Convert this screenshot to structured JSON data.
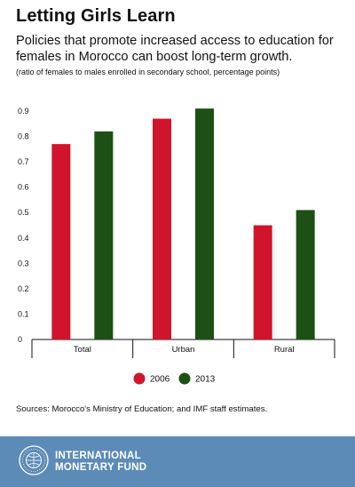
{
  "header": {
    "title": "Letting Girls Learn",
    "subtitle": "Policies that promote increased access to education for females in Morocco can boost long-term growth.",
    "note": "(ratio of females to males enrolled in secondary school, percentage points)"
  },
  "footer": {
    "source": "Sources: Morocco's Ministry of Education; and IMF staff estimates.",
    "org_line1": "INTERNATIONAL",
    "org_line2": "MONETARY FUND",
    "logo": "imf-seal-icon"
  },
  "colors": {
    "s2006": "#d0142c",
    "s2013": "#1d5014",
    "footer": "#5c8bb8"
  },
  "chart_data": {
    "type": "bar",
    "title": "Letting Girls Learn",
    "xlabel": "",
    "ylabel": "",
    "categories": [
      "Total",
      "Urban",
      "Rural"
    ],
    "series": [
      {
        "name": "2006",
        "values": [
          0.77,
          0.87,
          0.45
        ]
      },
      {
        "name": "2013",
        "values": [
          0.82,
          0.91,
          0.51
        ]
      }
    ],
    "ylim": [
      0,
      0.9
    ],
    "yticks": [
      "0",
      "0.1",
      "0.2",
      "0.3",
      "0.4",
      "0.5",
      "0.6",
      "0.7",
      "0.8",
      "0.9"
    ],
    "grid": false,
    "legend": "bottom-center"
  }
}
